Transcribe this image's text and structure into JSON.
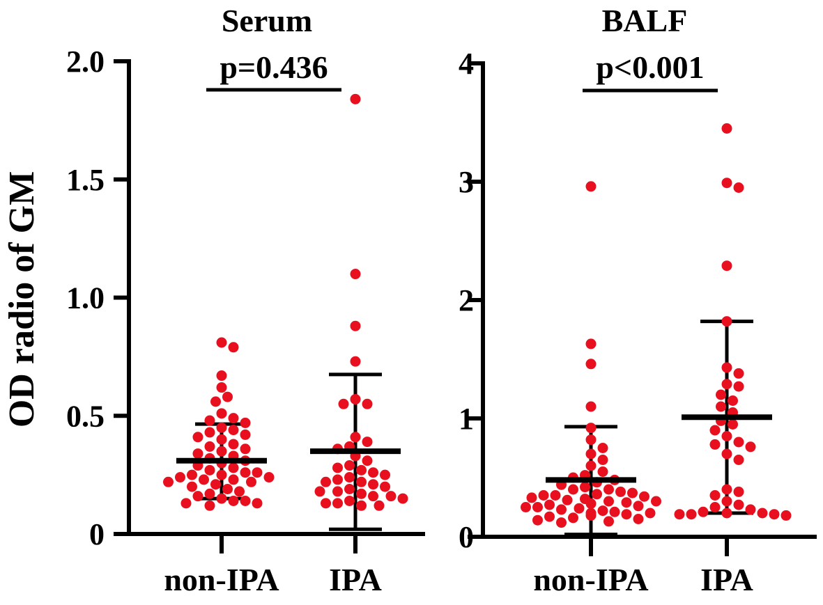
{
  "colors": {
    "points": "#e8101e",
    "axis": "#000000"
  },
  "ylabel": "OD radio of GM",
  "chart_data": [
    {
      "type": "scatter",
      "title": "Serum",
      "annotation": "p=0.436",
      "ylabel": "OD radio of GM",
      "ylim": [
        0,
        2.0
      ],
      "yticks": [
        0,
        0.5,
        1.0,
        1.5,
        2.0
      ],
      "ytick_labels": [
        "0",
        "0.5",
        "1.0",
        "1.5",
        "2.0"
      ],
      "categories": [
        "non-IPA",
        "IPA"
      ],
      "series": [
        {
          "name": "non-IPA",
          "mean": 0.31,
          "sd_upper": 0.465,
          "sd_lower": 0.15,
          "values": [
            0.81,
            0.79,
            0.67,
            0.62,
            0.58,
            0.56,
            0.51,
            0.49,
            0.48,
            0.47,
            0.45,
            0.44,
            0.43,
            0.42,
            0.41,
            0.4,
            0.38,
            0.37,
            0.36,
            0.35,
            0.34,
            0.33,
            0.32,
            0.31,
            0.3,
            0.29,
            0.28,
            0.27,
            0.26,
            0.25,
            0.25,
            0.24,
            0.23,
            0.23,
            0.22,
            0.21,
            0.2,
            0.19,
            0.18,
            0.17,
            0.16,
            0.15,
            0.14,
            0.13,
            0.12,
            0.13,
            0.14,
            0.22,
            0.24,
            0.26
          ]
        },
        {
          "name": "IPA",
          "mean": 0.35,
          "sd_upper": 0.675,
          "sd_lower": 0.02,
          "values": [
            1.84,
            1.1,
            0.88,
            0.73,
            0.57,
            0.55,
            0.55,
            0.41,
            0.39,
            0.37,
            0.36,
            0.33,
            0.31,
            0.29,
            0.28,
            0.27,
            0.26,
            0.25,
            0.24,
            0.23,
            0.22,
            0.21,
            0.2,
            0.19,
            0.18,
            0.17,
            0.16,
            0.15,
            0.14,
            0.13,
            0.12,
            0.12,
            0.13,
            0.22,
            0.18,
            0.16
          ]
        }
      ]
    },
    {
      "type": "scatter",
      "title": "BALF",
      "annotation": "p<0.001",
      "ylim": [
        0,
        4
      ],
      "yticks": [
        0,
        1,
        2,
        3,
        4
      ],
      "ytick_labels": [
        "0",
        "1",
        "2",
        "3",
        "4"
      ],
      "categories": [
        "non-IPA",
        "IPA"
      ],
      "series": [
        {
          "name": "non-IPA",
          "mean": 0.48,
          "sd_upper": 0.93,
          "sd_lower": 0.02,
          "values": [
            2.96,
            1.63,
            1.46,
            1.1,
            0.92,
            0.82,
            0.75,
            0.7,
            0.65,
            0.6,
            0.55,
            0.52,
            0.5,
            0.48,
            0.46,
            0.44,
            0.42,
            0.4,
            0.38,
            0.37,
            0.36,
            0.35,
            0.34,
            0.33,
            0.32,
            0.31,
            0.3,
            0.29,
            0.28,
            0.27,
            0.26,
            0.25,
            0.24,
            0.23,
            0.22,
            0.21,
            0.2,
            0.19,
            0.18,
            0.17,
            0.16,
            0.15,
            0.14,
            0.13,
            0.12,
            0.3,
            0.35,
            0.4,
            0.2,
            0.25
          ]
        },
        {
          "name": "IPA",
          "mean": 1.01,
          "sd_upper": 1.82,
          "sd_lower": 0.2,
          "values": [
            3.45,
            2.99,
            2.95,
            2.29,
            1.82,
            1.43,
            1.38,
            1.29,
            1.27,
            1.2,
            1.15,
            1.1,
            1.05,
            0.98,
            0.95,
            0.9,
            0.85,
            0.8,
            0.78,
            0.76,
            0.7,
            0.65,
            0.4,
            0.38,
            0.35,
            0.3,
            0.27,
            0.25,
            0.23,
            0.21,
            0.2,
            0.19,
            0.19,
            0.2,
            0.19,
            0.18
          ]
        }
      ]
    }
  ]
}
